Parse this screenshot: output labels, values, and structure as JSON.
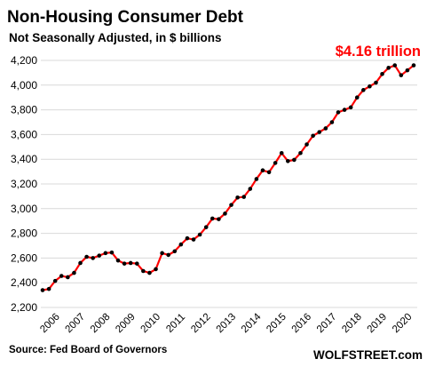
{
  "chart_data": {
    "type": "line",
    "title": "Non-Housing  Consumer  Debt",
    "subtitle": "Not Seasonally Adjusted, in $ billions",
    "annotation": "$4.16 trillion",
    "source": "Source: Fed Board of Governors",
    "brand": "WOLFSTREET.com",
    "ylim": [
      2200,
      4200
    ],
    "yticks": [
      2200,
      2400,
      2600,
      2800,
      3000,
      3200,
      3400,
      3600,
      3800,
      4000,
      4200
    ],
    "ytick_labels": [
      "2,200",
      "2,400",
      "2,600",
      "2,800",
      "3,000",
      "3,200",
      "3,400",
      "3,600",
      "3,800",
      "4,000",
      "4,200"
    ],
    "xtick_labels": [
      "2006",
      "2007",
      "2008",
      "2009",
      "2010",
      "2011",
      "2012",
      "2013",
      "2014",
      "2015",
      "2016",
      "2017",
      "2018",
      "2019",
      "2020"
    ],
    "x_start": "2006 Q1",
    "frequency": "quarterly",
    "grid": true,
    "colors": {
      "line": "#ff0000",
      "marker": "#000000",
      "annotation": "#ff0000",
      "grid": "#d9d9d9"
    },
    "series": [
      {
        "values": [
          2340,
          2350,
          2415,
          2455,
          2445,
          2480,
          2560,
          2610,
          2600,
          2620,
          2640,
          2645,
          2580,
          2555,
          2560,
          2555,
          2495,
          2480,
          2510,
          2640,
          2625,
          2655,
          2710,
          2760,
          2750,
          2790,
          2850,
          2920,
          2915,
          2960,
          3030,
          3090,
          3095,
          3160,
          3240,
          3310,
          3295,
          3370,
          3450,
          3385,
          3395,
          3450,
          3520,
          3590,
          3620,
          3650,
          3700,
          3780,
          3800,
          3820,
          3900,
          3960,
          3990,
          4020,
          4090,
          4140,
          4160,
          4080,
          4120,
          4160
        ]
      }
    ]
  }
}
